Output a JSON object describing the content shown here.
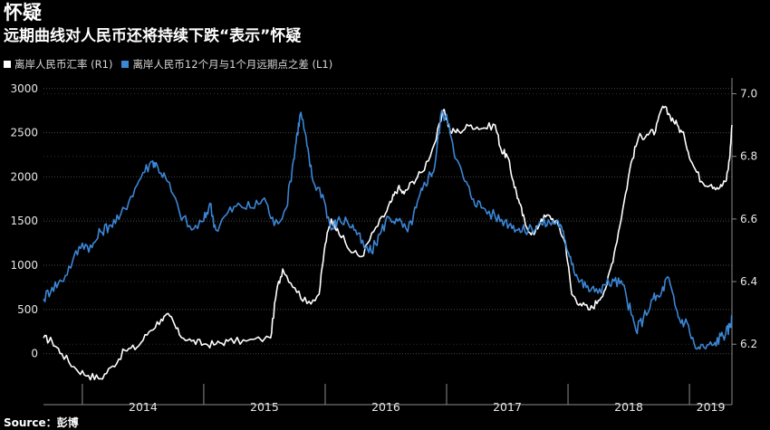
{
  "header": {
    "title": "怀疑",
    "subtitle": "远期曲线对人民币还将持续下跌“表示”怀疑"
  },
  "source": "Source：彭博",
  "chart_data": {
    "type": "line",
    "legend_position": "top-left",
    "grid": true,
    "x_categories": [
      "2014",
      "2015",
      "2016",
      "2017",
      "2018",
      "2019"
    ],
    "x_range": [
      2013.68,
      2019.35
    ],
    "left_axis": {
      "ticks": [
        0,
        500,
        1000,
        1500,
        2000,
        2500,
        3000
      ],
      "range": [
        -300,
        3100
      ]
    },
    "right_axis": {
      "ticks": [
        "6.2",
        "6.4",
        "6.6",
        "6.8",
        "7.0"
      ],
      "range": [
        6.085,
        7.045
      ]
    },
    "colors": {
      "white_series": "#ffffff",
      "blue_series": "#3b86d6",
      "grid": "#4a4a4a",
      "axis": "#8c8c8c"
    },
    "series": [
      {
        "name": "离岸人民币汇率 (R1)",
        "axis": "right",
        "color": "#ffffff",
        "points": [
          [
            2013.68,
            6.22
          ],
          [
            2013.75,
            6.21
          ],
          [
            2013.83,
            6.17
          ],
          [
            2013.95,
            6.12
          ],
          [
            2014.05,
            6.1
          ],
          [
            2014.15,
            6.09
          ],
          [
            2014.25,
            6.13
          ],
          [
            2014.35,
            6.18
          ],
          [
            2014.45,
            6.19
          ],
          [
            2014.55,
            6.24
          ],
          [
            2014.65,
            6.28
          ],
          [
            2014.72,
            6.29
          ],
          [
            2014.8,
            6.23
          ],
          [
            2014.9,
            6.21
          ],
          [
            2015.0,
            6.2
          ],
          [
            2015.1,
            6.2
          ],
          [
            2015.2,
            6.21
          ],
          [
            2015.35,
            6.21
          ],
          [
            2015.55,
            6.22
          ],
          [
            2015.6,
            6.37
          ],
          [
            2015.65,
            6.44
          ],
          [
            2015.75,
            6.38
          ],
          [
            2015.85,
            6.33
          ],
          [
            2015.95,
            6.36
          ],
          [
            2016.0,
            6.52
          ],
          [
            2016.05,
            6.6
          ],
          [
            2016.1,
            6.57
          ],
          [
            2016.2,
            6.5
          ],
          [
            2016.3,
            6.48
          ],
          [
            2016.4,
            6.56
          ],
          [
            2016.5,
            6.62
          ],
          [
            2016.55,
            6.66
          ],
          [
            2016.6,
            6.7
          ],
          [
            2016.65,
            6.68
          ],
          [
            2016.72,
            6.72
          ],
          [
            2016.8,
            6.75
          ],
          [
            2016.9,
            6.84
          ],
          [
            2016.98,
            6.95
          ],
          [
            2017.03,
            6.88
          ],
          [
            2017.1,
            6.88
          ],
          [
            2017.2,
            6.9
          ],
          [
            2017.3,
            6.89
          ],
          [
            2017.4,
            6.9
          ],
          [
            2017.45,
            6.82
          ],
          [
            2017.5,
            6.8
          ],
          [
            2017.55,
            6.72
          ],
          [
            2017.6,
            6.65
          ],
          [
            2017.65,
            6.58
          ],
          [
            2017.72,
            6.55
          ],
          [
            2017.78,
            6.6
          ],
          [
            2017.85,
            6.61
          ],
          [
            2017.92,
            6.58
          ],
          [
            2017.98,
            6.52
          ],
          [
            2018.03,
            6.36
          ],
          [
            2018.1,
            6.33
          ],
          [
            2018.18,
            6.31
          ],
          [
            2018.25,
            6.34
          ],
          [
            2018.32,
            6.39
          ],
          [
            2018.38,
            6.49
          ],
          [
            2018.45,
            6.63
          ],
          [
            2018.52,
            6.78
          ],
          [
            2018.58,
            6.86
          ],
          [
            2018.65,
            6.87
          ],
          [
            2018.72,
            6.88
          ],
          [
            2018.78,
            6.96
          ],
          [
            2018.84,
            6.93
          ],
          [
            2018.9,
            6.9
          ],
          [
            2018.96,
            6.86
          ],
          [
            2019.02,
            6.78
          ],
          [
            2019.1,
            6.72
          ],
          [
            2019.18,
            6.71
          ],
          [
            2019.25,
            6.7
          ],
          [
            2019.3,
            6.72
          ],
          [
            2019.33,
            6.79
          ],
          [
            2019.35,
            6.9
          ]
        ]
      },
      {
        "name": "离岸人民币12个月与1个月远期点之差 (L1)",
        "axis": "left",
        "color": "#3b86d6",
        "points": [
          [
            2013.68,
            620
          ],
          [
            2013.75,
            750
          ],
          [
            2013.83,
            820
          ],
          [
            2013.92,
            1050
          ],
          [
            2014.0,
            1250
          ],
          [
            2014.08,
            1200
          ],
          [
            2014.15,
            1380
          ],
          [
            2014.22,
            1450
          ],
          [
            2014.3,
            1520
          ],
          [
            2014.4,
            1780
          ],
          [
            2014.5,
            2050
          ],
          [
            2014.58,
            2180
          ],
          [
            2014.62,
            2120
          ],
          [
            2014.7,
            1950
          ],
          [
            2014.8,
            1600
          ],
          [
            2014.9,
            1400
          ],
          [
            2015.0,
            1500
          ],
          [
            2015.05,
            1700
          ],
          [
            2015.1,
            1400
          ],
          [
            2015.2,
            1600
          ],
          [
            2015.3,
            1680
          ],
          [
            2015.4,
            1650
          ],
          [
            2015.5,
            1760
          ],
          [
            2015.58,
            1450
          ],
          [
            2015.68,
            1650
          ],
          [
            2015.74,
            2200
          ],
          [
            2015.77,
            2500
          ],
          [
            2015.8,
            2730
          ],
          [
            2015.85,
            2350
          ],
          [
            2015.9,
            1950
          ],
          [
            2015.98,
            1800
          ],
          [
            2016.05,
            1400
          ],
          [
            2016.1,
            1500
          ],
          [
            2016.18,
            1500
          ],
          [
            2016.25,
            1400
          ],
          [
            2016.32,
            1200
          ],
          [
            2016.38,
            1150
          ],
          [
            2016.45,
            1350
          ],
          [
            2016.52,
            1550
          ],
          [
            2016.6,
            1500
          ],
          [
            2016.68,
            1380
          ],
          [
            2016.75,
            1650
          ],
          [
            2016.8,
            1850
          ],
          [
            2016.85,
            2000
          ],
          [
            2016.9,
            2100
          ],
          [
            2016.96,
            2750
          ],
          [
            2017.02,
            2600
          ],
          [
            2017.08,
            2200
          ],
          [
            2017.15,
            1950
          ],
          [
            2017.22,
            1750
          ],
          [
            2017.3,
            1650
          ],
          [
            2017.4,
            1550
          ],
          [
            2017.48,
            1500
          ],
          [
            2017.55,
            1450
          ],
          [
            2017.62,
            1380
          ],
          [
            2017.7,
            1420
          ],
          [
            2017.78,
            1470
          ],
          [
            2017.85,
            1480
          ],
          [
            2017.92,
            1500
          ],
          [
            2017.97,
            1300
          ],
          [
            2018.02,
            1100
          ],
          [
            2018.08,
            850
          ],
          [
            2018.15,
            750
          ],
          [
            2018.22,
            700
          ],
          [
            2018.3,
            780
          ],
          [
            2018.38,
            820
          ],
          [
            2018.45,
            780
          ],
          [
            2018.52,
            450
          ],
          [
            2018.56,
            260
          ],
          [
            2018.62,
            400
          ],
          [
            2018.7,
            620
          ],
          [
            2018.76,
            650
          ],
          [
            2018.82,
            870
          ],
          [
            2018.88,
            550
          ],
          [
            2018.92,
            380
          ],
          [
            2018.98,
            350
          ],
          [
            2019.05,
            60
          ],
          [
            2019.12,
            70
          ],
          [
            2019.2,
            100
          ],
          [
            2019.26,
            200
          ],
          [
            2019.3,
            230
          ],
          [
            2019.33,
            300
          ],
          [
            2019.35,
            400
          ]
        ]
      }
    ]
  }
}
